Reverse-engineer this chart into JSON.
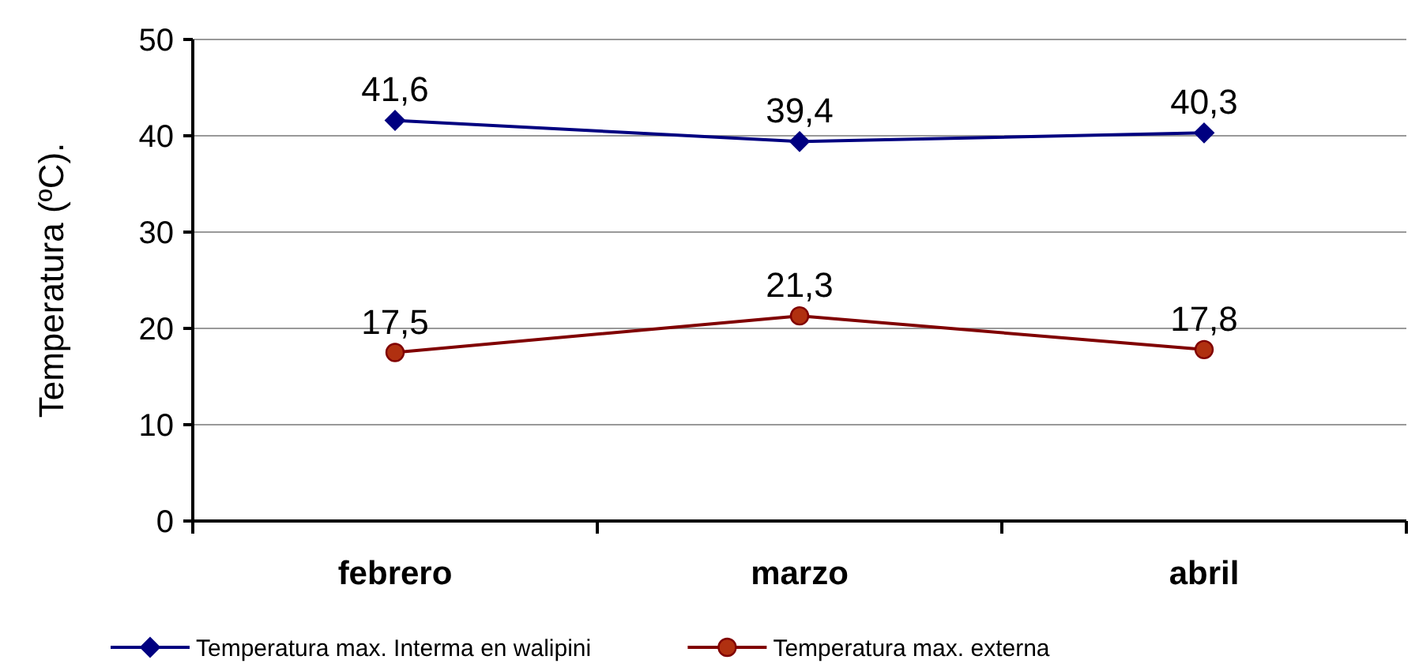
{
  "chart_data": {
    "type": "line",
    "ylabel": "Temperatura (ºC).",
    "categories": [
      "febrero",
      "marzo",
      "abril"
    ],
    "series": [
      {
        "name": "Temperatura max. Interma en walipini",
        "color": "#000080",
        "values": [
          41.6,
          39.4,
          40.3
        ],
        "value_labels": [
          "41,6",
          "39,4",
          "40,3"
        ],
        "marker": "diamond"
      },
      {
        "name": "Temperatura max. externa",
        "color": "#800000",
        "values": [
          17.5,
          21.3,
          17.8
        ],
        "value_labels": [
          "17,5",
          "21,3",
          "17,8"
        ],
        "marker": "circle"
      }
    ],
    "ylim": [
      0,
      50
    ],
    "yticks": [
      0,
      10,
      20,
      30,
      40,
      50
    ],
    "grid": "y",
    "legend": "bottom"
  }
}
